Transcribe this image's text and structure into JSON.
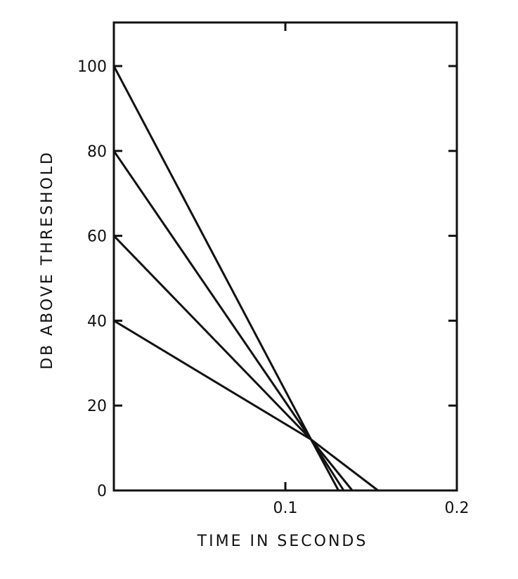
{
  "chart_data": {
    "type": "line",
    "title": "",
    "xlabel": "TIME IN SECONDS",
    "ylabel": "DB ABOVE THRESHOLD",
    "xlim": [
      0,
      0.2
    ],
    "ylim": [
      0,
      110
    ],
    "x_ticks": [
      0.1,
      0.2
    ],
    "x_tick_labels": [
      "0.1",
      "0.2"
    ],
    "y_ticks": [
      0,
      20,
      40,
      60,
      80,
      100
    ],
    "y_tick_labels": [
      "0",
      "20",
      "40",
      "60",
      "80",
      "100"
    ],
    "grid": false,
    "legend": "none",
    "line_color": "#111111",
    "series": [
      {
        "x": [
          0,
          0.115,
          0.131
        ],
        "y": [
          100,
          12,
          0
        ]
      },
      {
        "x": [
          0,
          0.115,
          0.134
        ],
        "y": [
          80,
          12,
          0
        ]
      },
      {
        "x": [
          0,
          0.115,
          0.139
        ],
        "y": [
          60,
          12,
          0
        ]
      },
      {
        "x": [
          0,
          0.115,
          0.154
        ],
        "y": [
          40,
          12,
          0
        ]
      }
    ]
  }
}
